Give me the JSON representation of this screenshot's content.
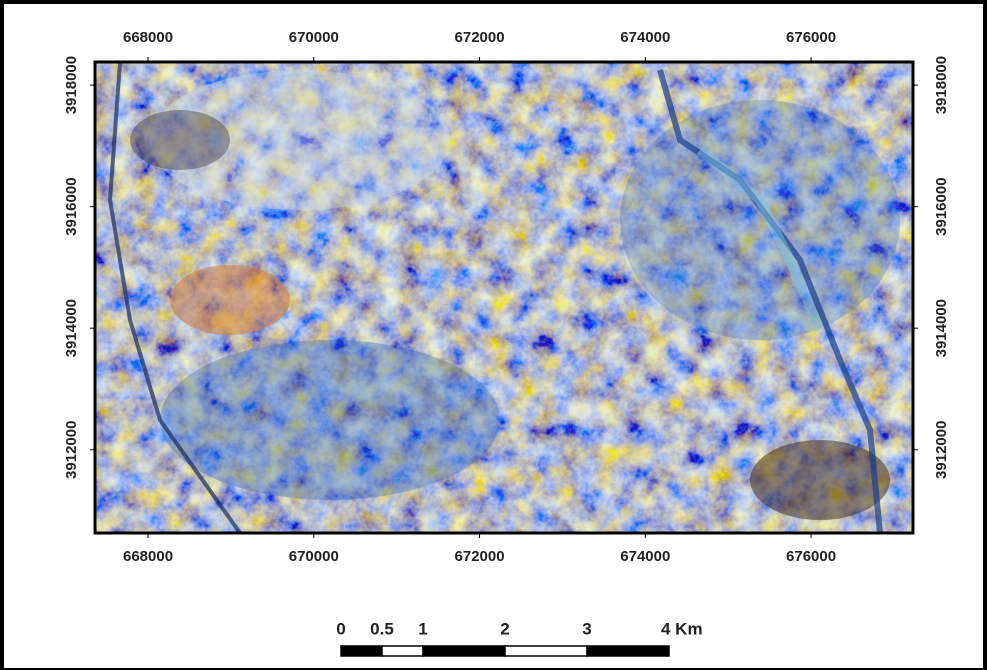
{
  "map": {
    "xlim": [
      667360,
      677230
    ],
    "ylim": [
      3910630,
      3918380
    ],
    "xticks": [
      668000,
      670000,
      672000,
      674000,
      676000
    ],
    "yticks": [
      3912000,
      3914000,
      3916000,
      3918000
    ],
    "scale_bar": {
      "ticks": [
        0,
        {
          "value": 0.5,
          "label": "0.5"
        },
        1,
        2,
        3,
        {
          "value": 4,
          "label": "4 Km"
        }
      ]
    }
  }
}
